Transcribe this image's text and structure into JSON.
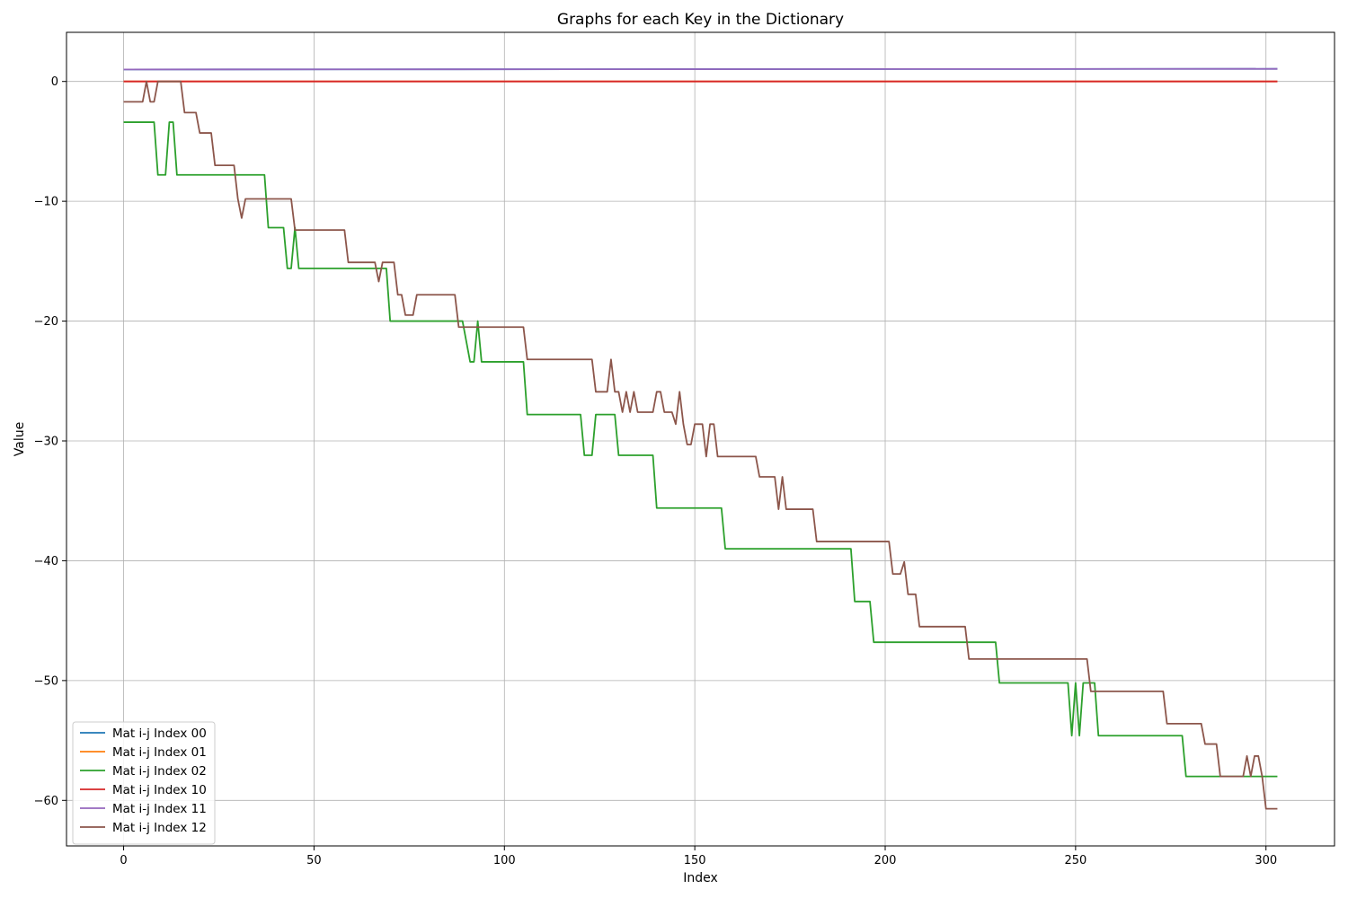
{
  "chart_data": {
    "type": "line",
    "title": "Graphs for each Key in the Dictionary",
    "xlabel": "Index",
    "ylabel": "Value",
    "xlim": [
      -15,
      318
    ],
    "ylim": [
      -63.8,
      4.1
    ],
    "xticks": [
      0,
      50,
      100,
      150,
      200,
      250,
      300
    ],
    "yticks": [
      0,
      -10,
      -20,
      -30,
      -40,
      -50,
      -60
    ],
    "xtick_labels": [
      "0",
      "50",
      "100",
      "150",
      "200",
      "250",
      "300"
    ],
    "ytick_labels": [
      "0",
      "−10",
      "−20",
      "−30",
      "−40",
      "−50",
      "−60"
    ],
    "grid": true,
    "legend_position": "lower-left",
    "series": [
      {
        "name": "Mat i-j Index 00",
        "color": "#1f77b4",
        "points": [
          [
            0,
            1.0
          ],
          [
            303,
            1.05
          ]
        ]
      },
      {
        "name": "Mat i-j Index 01",
        "color": "#ff7f0e",
        "points": [
          [
            0,
            0.0
          ],
          [
            303,
            0.0
          ]
        ]
      },
      {
        "name": "Mat i-j Index 02",
        "color": "#2ca02c",
        "points": [
          [
            0,
            -3.4
          ],
          [
            8,
            -3.4
          ],
          [
            9,
            -7.8
          ],
          [
            11,
            -7.8
          ],
          [
            12,
            -3.4
          ],
          [
            13,
            -3.4
          ],
          [
            14,
            -7.8
          ],
          [
            37,
            -7.8
          ],
          [
            38,
            -12.2
          ],
          [
            42,
            -12.2
          ],
          [
            43,
            -15.6
          ],
          [
            44,
            -15.6
          ],
          [
            45,
            -12.2
          ],
          [
            46,
            -15.6
          ],
          [
            69,
            -15.6
          ],
          [
            70,
            -20.0
          ],
          [
            89,
            -20.0
          ],
          [
            91,
            -23.4
          ],
          [
            92,
            -23.4
          ],
          [
            93,
            -20.0
          ],
          [
            94,
            -23.4
          ],
          [
            105,
            -23.4
          ],
          [
            106,
            -27.8
          ],
          [
            120,
            -27.8
          ],
          [
            121,
            -31.2
          ],
          [
            123,
            -31.2
          ],
          [
            124,
            -27.8
          ],
          [
            129,
            -27.8
          ],
          [
            130,
            -31.2
          ],
          [
            139,
            -31.2
          ],
          [
            140,
            -35.6
          ],
          [
            157,
            -35.6
          ],
          [
            158,
            -39.0
          ],
          [
            191,
            -39.0
          ],
          [
            192,
            -43.4
          ],
          [
            196,
            -43.4
          ],
          [
            197,
            -46.8
          ],
          [
            229,
            -46.8
          ],
          [
            230,
            -50.2
          ],
          [
            248,
            -50.2
          ],
          [
            249,
            -54.6
          ],
          [
            250,
            -50.2
          ],
          [
            251,
            -54.6
          ],
          [
            252,
            -50.2
          ],
          [
            255,
            -50.2
          ],
          [
            256,
            -54.6
          ],
          [
            278,
            -54.6
          ],
          [
            279,
            -58.0
          ],
          [
            303,
            -58.0
          ]
        ]
      },
      {
        "name": "Mat i-j Index 10",
        "color": "#d62728",
        "points": [
          [
            0,
            0.0
          ],
          [
            303,
            0.0
          ]
        ]
      },
      {
        "name": "Mat i-j Index 11",
        "color": "#9467bd",
        "points": [
          [
            0,
            1.0
          ],
          [
            303,
            1.05
          ]
        ]
      },
      {
        "name": "Mat i-j Index 12",
        "color": "#8c564b",
        "points": [
          [
            0,
            -1.7
          ],
          [
            5,
            -1.7
          ],
          [
            6,
            0.0
          ],
          [
            7,
            -1.7
          ],
          [
            8,
            -1.7
          ],
          [
            9,
            0.0
          ],
          [
            15,
            0.0
          ],
          [
            16,
            -2.6
          ],
          [
            19,
            -2.6
          ],
          [
            20,
            -4.3
          ],
          [
            23,
            -4.3
          ],
          [
            24,
            -7.0
          ],
          [
            29,
            -7.0
          ],
          [
            30,
            -9.8
          ],
          [
            31,
            -11.4
          ],
          [
            32,
            -9.8
          ],
          [
            44,
            -9.8
          ],
          [
            45,
            -12.4
          ],
          [
            58,
            -12.4
          ],
          [
            59,
            -15.1
          ],
          [
            66,
            -15.1
          ],
          [
            67,
            -16.7
          ],
          [
            68,
            -15.1
          ],
          [
            71,
            -15.1
          ],
          [
            72,
            -17.8
          ],
          [
            73,
            -17.8
          ],
          [
            74,
            -19.5
          ],
          [
            76,
            -19.5
          ],
          [
            77,
            -17.8
          ],
          [
            87,
            -17.8
          ],
          [
            88,
            -20.5
          ],
          [
            105,
            -20.5
          ],
          [
            106,
            -23.2
          ],
          [
            123,
            -23.2
          ],
          [
            124,
            -25.9
          ],
          [
            127,
            -25.9
          ],
          [
            128,
            -23.2
          ],
          [
            129,
            -25.9
          ],
          [
            130,
            -25.9
          ],
          [
            131,
            -27.6
          ],
          [
            132,
            -25.9
          ],
          [
            133,
            -27.6
          ],
          [
            134,
            -25.9
          ],
          [
            135,
            -27.6
          ],
          [
            139,
            -27.6
          ],
          [
            140,
            -25.9
          ],
          [
            141,
            -25.9
          ],
          [
            142,
            -27.6
          ],
          [
            144,
            -27.6
          ],
          [
            145,
            -28.6
          ],
          [
            146,
            -25.9
          ],
          [
            147,
            -28.6
          ],
          [
            148,
            -30.3
          ],
          [
            149,
            -30.3
          ],
          [
            150,
            -28.6
          ],
          [
            152,
            -28.6
          ],
          [
            153,
            -31.3
          ],
          [
            154,
            -28.6
          ],
          [
            155,
            -28.6
          ],
          [
            156,
            -31.3
          ],
          [
            166,
            -31.3
          ],
          [
            167,
            -33.0
          ],
          [
            171,
            -33.0
          ],
          [
            172,
            -35.7
          ],
          [
            173,
            -33.0
          ],
          [
            174,
            -35.7
          ],
          [
            181,
            -35.7
          ],
          [
            182,
            -38.4
          ],
          [
            201,
            -38.4
          ],
          [
            202,
            -41.1
          ],
          [
            204,
            -41.1
          ],
          [
            205,
            -40.1
          ],
          [
            206,
            -42.8
          ],
          [
            208,
            -42.8
          ],
          [
            209,
            -45.5
          ],
          [
            221,
            -45.5
          ],
          [
            222,
            -48.2
          ],
          [
            253,
            -48.2
          ],
          [
            254,
            -50.9
          ],
          [
            273,
            -50.9
          ],
          [
            274,
            -53.6
          ],
          [
            283,
            -53.6
          ],
          [
            284,
            -55.3
          ],
          [
            287,
            -55.3
          ],
          [
            288,
            -58.0
          ],
          [
            294,
            -58.0
          ],
          [
            295,
            -56.3
          ],
          [
            296,
            -58.0
          ],
          [
            297,
            -56.3
          ],
          [
            298,
            -56.3
          ],
          [
            299,
            -58.0
          ],
          [
            300,
            -60.7
          ],
          [
            303,
            -60.7
          ]
        ]
      }
    ]
  }
}
